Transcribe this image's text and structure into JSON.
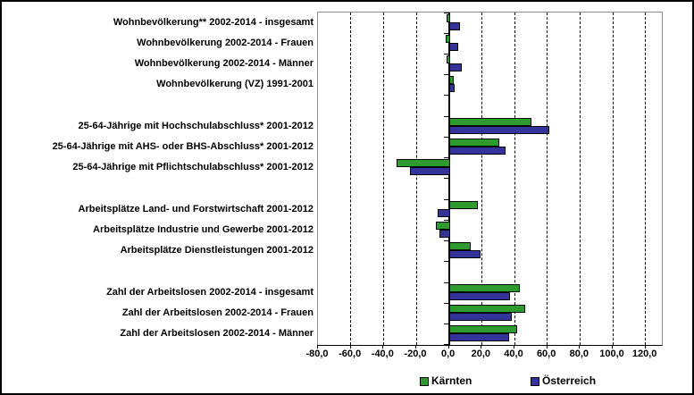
{
  "chart_data": {
    "type": "bar",
    "orientation": "horizontal",
    "title": "",
    "categories": [
      "Wohnbevölkerung** 2002-2014 - insgesamt",
      "Wohnbevölkerung 2002-2014 - Frauen",
      "Wohnbevölkerung 2002-2014 - Männer",
      "Wohnbevölkerung (VZ) 1991-2001",
      "25-64-Jährige mit Hochschulabschluss* 2001-2012",
      "25-64-Jährige mit AHS- oder BHS-Abschluss* 2001-2012",
      "25-64-Jährige mit Pflichtschulabschluss* 2001-2012",
      "Arbeitsplätze Land- und Forstwirtschaft 2001-2012",
      "Arbeitsplätze Industrie und Gewerbe 2001-2012",
      "Arbeitsplätze Dienstleistungen 2001-2012",
      "Zahl der Arbeitslosen 2002-2014 - insgesamt",
      "Zahl der Arbeitslosen 2002-2014 - Frauen",
      "Zahl der Arbeitslosen 2002-2014 - Männer"
    ],
    "groups": [
      [
        0,
        1,
        2,
        3
      ],
      [
        4,
        5,
        6
      ],
      [
        7,
        8,
        9
      ],
      [
        10,
        11,
        12
      ]
    ],
    "series": [
      {
        "name": "Kärnten",
        "color": "#2E9B2E",
        "values": [
          -1.5,
          -2,
          -1.5,
          2.5,
          50,
          30,
          -32,
          17,
          -8,
          13,
          43,
          46,
          41
        ]
      },
      {
        "name": "Österreich",
        "color": "#333399",
        "values": [
          6,
          5,
          7.5,
          3,
          61,
          34,
          -24,
          -7,
          -6,
          19,
          37,
          38,
          36
        ]
      }
    ],
    "xlim": [
      -80,
      130
    ],
    "x_ticks": [
      -80,
      -60,
      -40,
      -20,
      0,
      20,
      40,
      60,
      80,
      100,
      120
    ],
    "x_tick_labels": [
      "-80,0",
      "-60,0",
      "-40,0",
      "-20,0",
      "0,0",
      "20,0",
      "40,0",
      "60,0",
      "80,0",
      "100,0",
      "120,0"
    ],
    "grid": "vertical-dashed",
    "legend_position": "bottom",
    "bar_border_color": "#000000"
  }
}
